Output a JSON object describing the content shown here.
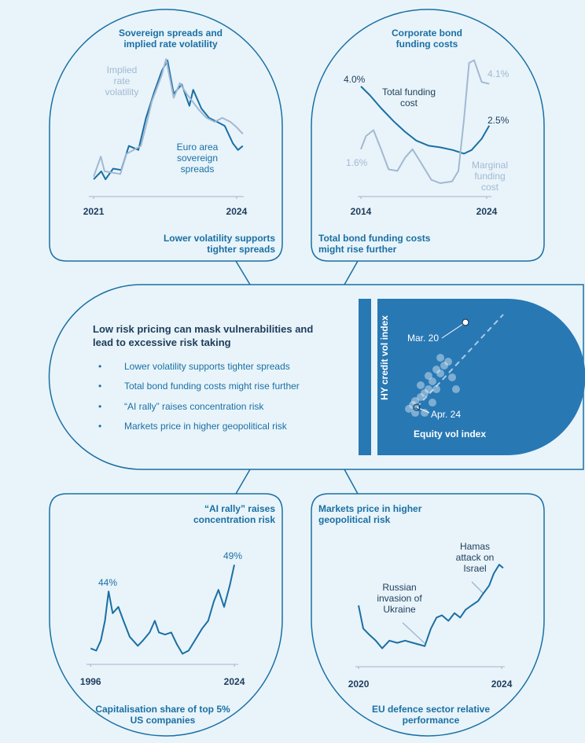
{
  "center": {
    "title": "Low risk pricing can mask vulnerabilities and lead to excessive risk taking",
    "bullets": [
      "Lower volatility supports tighter spreads",
      "Total bond funding costs might rise further",
      "“AI rally” raises concentration risk",
      "Markets price in higher geopolitical risk"
    ]
  },
  "chart_data": [
    {
      "type": "line",
      "title": "Sovereign spreads and implied rate volatility",
      "caption": "Lower volatility supports tighter spreads",
      "xlim": [
        2020.9,
        2024.15
      ],
      "xticks": [
        2021,
        2024
      ],
      "ylim": [
        0,
        100
      ],
      "series": [
        {
          "name": "Euro area sovereign spreads",
          "color": "#1b6fa3",
          "x": [
            2021.0,
            2021.16,
            2021.25,
            2021.41,
            2021.58,
            2021.74,
            2021.94,
            2022.1,
            2022.27,
            2022.43,
            2022.55,
            2022.68,
            2022.85,
            2023.01,
            2023.09,
            2023.26,
            2023.42,
            2023.59,
            2023.75,
            2023.92,
            2024.03,
            2024.13
          ],
          "values": [
            7,
            13,
            7,
            15,
            14,
            32,
            29,
            53,
            72,
            88,
            96,
            71,
            78,
            62,
            74,
            60,
            53,
            50,
            47,
            34,
            29,
            32
          ]
        },
        {
          "name": "Implied rate volatility",
          "color": "#a3b8d2",
          "x": [
            2021.0,
            2021.15,
            2021.23,
            2021.56,
            2021.69,
            2021.99,
            2022.1,
            2022.22,
            2022.43,
            2022.52,
            2022.68,
            2022.81,
            2022.95,
            2023.21,
            2023.37,
            2023.54,
            2023.7,
            2023.87,
            2024.0,
            2024.13
          ],
          "values": [
            9,
            24,
            13,
            11,
            26,
            32,
            47,
            65,
            85,
            97,
            68,
            79,
            71,
            59,
            53,
            50,
            53,
            50,
            46,
            41
          ]
        }
      ]
    },
    {
      "type": "line",
      "title": "Corporate bond funding costs",
      "caption": "Total bond funding costs might rise further",
      "xlim": [
        2013.75,
        2024.375
      ],
      "xticks": [
        2014,
        2024
      ],
      "ylim": [
        0,
        5.5
      ],
      "series": [
        {
          "name": "Total funding cost",
          "color": "#1b6fa3",
          "x": [
            2014,
            2014.7,
            2015.6,
            2016.6,
            2017.5,
            2018.4,
            2019.4,
            2020.3,
            2021.3,
            2022.2,
            2022.8,
            2023.6,
            2024.2
          ],
          "values": [
            4.0,
            3.67,
            3.17,
            2.67,
            2.27,
            1.93,
            1.73,
            1.67,
            1.57,
            1.43,
            1.57,
            2.0,
            2.5
          ],
          "value_labels": [
            "4.0%",
            null,
            null,
            null,
            null,
            null,
            null,
            null,
            null,
            null,
            null,
            null,
            "2.5%"
          ]
        },
        {
          "name": "Marginal funding cost",
          "color": "#a3b8d2",
          "x": [
            2014,
            2014.4,
            2015.0,
            2015.6,
            2016.2,
            2016.9,
            2017.5,
            2018.1,
            2018.75,
            2019.6,
            2020.3,
            2021.25,
            2021.75,
            2022.2,
            2022.6,
            2023.0,
            2023.6,
            2024.2
          ],
          "values": [
            1.6,
            2.1,
            2.33,
            1.6,
            0.83,
            0.77,
            1.27,
            1.6,
            1.1,
            0.43,
            0.3,
            0.37,
            0.77,
            2.77,
            4.9,
            5.0,
            4.17,
            4.1
          ],
          "value_labels": [
            "1.6%",
            null,
            null,
            null,
            null,
            null,
            null,
            null,
            null,
            null,
            null,
            null,
            null,
            null,
            null,
            null,
            null,
            "4.1%"
          ]
        }
      ]
    },
    {
      "type": "line",
      "title": "“AI rally” raises concentration risk",
      "caption": "Capitalisation share of top 5% US companies",
      "xlim": [
        1995.5,
        2024.3
      ],
      "xticks": [
        1996,
        2024
      ],
      "ylim": [
        25,
        52
      ],
      "series": [
        {
          "name": null,
          "color": "#1b6fa3",
          "x": [
            1996,
            1997.1,
            1998,
            1998.8,
            1999.5,
            2000.3,
            2001.4,
            2002.4,
            2003.6,
            2005.2,
            2006.2,
            2007.5,
            2008.5,
            2009.3,
            2010.5,
            2011.7,
            2012.8,
            2013.9,
            2015.1,
            2016.3,
            2017.7,
            2018.9,
            2020,
            2020.9,
            2022,
            2023.1,
            2024
          ],
          "values": [
            33.3,
            32.9,
            34.8,
            38.5,
            44,
            39.9,
            41.1,
            38.5,
            35.5,
            33.8,
            34.8,
            36.3,
            38.5,
            36.3,
            35.9,
            36.3,
            34.1,
            32.3,
            32.9,
            34.8,
            37,
            38.5,
            42.1,
            44.3,
            41.1,
            45.1,
            49
          ],
          "value_labels": [
            null,
            null,
            null,
            null,
            "44%",
            null,
            null,
            null,
            null,
            null,
            null,
            null,
            null,
            null,
            null,
            null,
            null,
            null,
            null,
            null,
            null,
            null,
            null,
            null,
            null,
            null,
            "49%"
          ]
        }
      ]
    },
    {
      "type": "line",
      "title": "Markets price in higher geopolitical risk",
      "caption": "EU defence sector relative performance",
      "xlim": [
        2019.9,
        2024.1
      ],
      "xticks": [
        2020,
        2024
      ],
      "ylim": [
        0,
        100
      ],
      "annotations": [
        "Russian invasion of Ukraine",
        "Hamas attack on Israel"
      ],
      "series": [
        {
          "name": null,
          "color": "#1b6fa3",
          "x": [
            2020,
            2020.13,
            2020.31,
            2020.48,
            2020.66,
            2020.86,
            2021.08,
            2021.3,
            2021.52,
            2021.74,
            2021.85,
            2022.02,
            2022.18,
            2022.33,
            2022.51,
            2022.68,
            2022.84,
            2022.99,
            2023.16,
            2023.34,
            2023.49,
            2023.65,
            2023.78,
            2023.93,
            2024.04
          ],
          "values": [
            50,
            29,
            23,
            18,
            11,
            18,
            16,
            18,
            16,
            14,
            13,
            29,
            39,
            41,
            36,
            43,
            39,
            46,
            50,
            54,
            61,
            68,
            79,
            87,
            84
          ]
        }
      ]
    },
    {
      "type": "scatter",
      "x_label": "Equity vol index",
      "y_label": "HY credit vol index",
      "xlim": [
        0,
        100
      ],
      "ylim": [
        0,
        100
      ],
      "color": "#ffffff",
      "x": [
        14.3,
        17.9,
        20,
        25,
        28.6,
        32.1,
        25,
        35.7,
        32.1,
        39.3,
        42.9,
        46.4,
        42.9,
        50,
        53.6,
        57.1,
        28.6,
        35.7,
        20,
        39.3,
        65.7,
        21.4
      ],
      "values": [
        7.7,
        11.5,
        15.4,
        19.2,
        23.1,
        26.9,
        30.8,
        34.6,
        40,
        46.2,
        42.3,
        50,
        57.7,
        53.8,
        38.5,
        26.9,
        3.8,
        13.8,
        3.8,
        26.9,
        92.3,
        9.2
      ],
      "point_labels": [
        null,
        null,
        null,
        null,
        null,
        null,
        null,
        null,
        null,
        null,
        null,
        null,
        null,
        null,
        null,
        null,
        null,
        null,
        null,
        null,
        "Mar. 20",
        "Apr. 24"
      ]
    }
  ]
}
